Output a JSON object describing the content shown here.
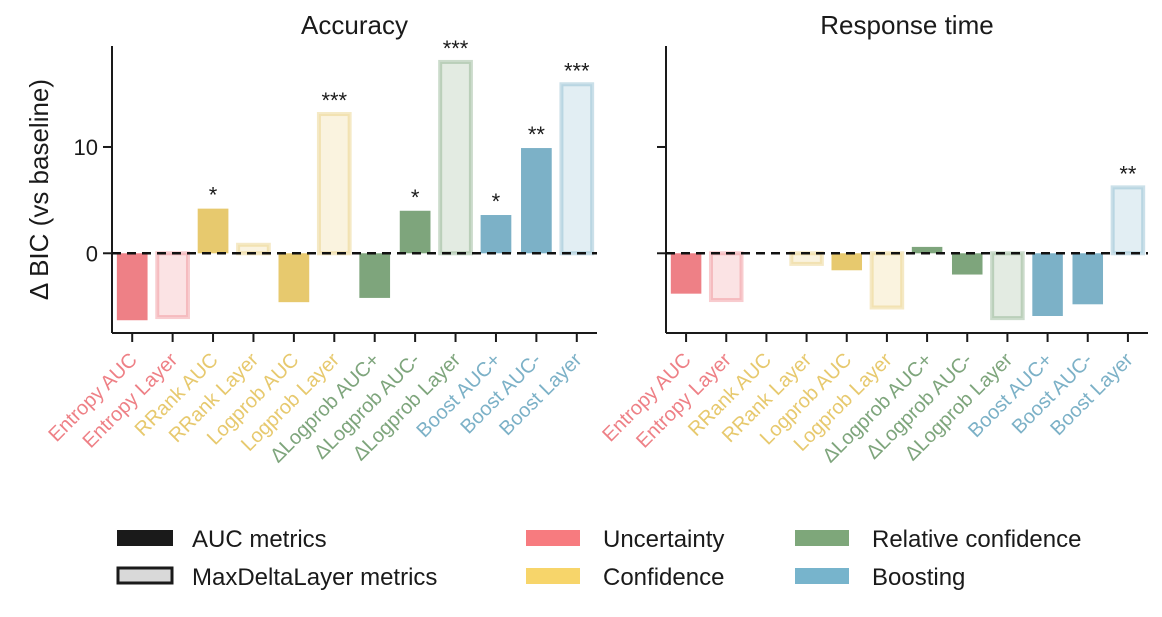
{
  "chart_data": {
    "type": "bar",
    "ylabel": "Δ BIC (vs baseline)",
    "ylim": [
      -7.5,
      19.5
    ],
    "yticks": [
      0,
      10
    ],
    "baseline": 0,
    "categories": [
      "Entropy AUC",
      "Entropy Layer",
      "RRank AUC",
      "RRank Layer",
      "Logprob AUC",
      "Logprob Layer",
      "ΔLogprob AUC+",
      "ΔLogprob AUC-",
      "ΔLogprob Layer",
      "Boost AUC+",
      "Boost AUC-",
      "Boost Layer"
    ],
    "category_group": [
      "Uncertainty",
      "Uncertainty",
      "Confidence",
      "Confidence",
      "Confidence",
      "Confidence",
      "Relative confidence",
      "Relative confidence",
      "Relative confidence",
      "Boosting",
      "Boosting",
      "Boosting"
    ],
    "metric_type": [
      "AUC",
      "Layer",
      "AUC",
      "Layer",
      "AUC",
      "Layer",
      "AUC",
      "AUC",
      "Layer",
      "AUC",
      "AUC",
      "Layer"
    ],
    "colors": {
      "Uncertainty": "#ee8086",
      "Confidence": "#e7c96e",
      "Relative confidence": "#7ea57c",
      "Boosting": "#7cb1c7"
    },
    "panels": [
      {
        "title": "Accuracy",
        "values": [
          -6.3,
          -6.0,
          4.2,
          0.8,
          -4.6,
          13.1,
          -4.2,
          4.0,
          18.0,
          3.6,
          9.9,
          15.9
        ],
        "significance": [
          "",
          "",
          "*",
          "",
          "",
          "***",
          "",
          "*",
          "***",
          "*",
          "**",
          "***"
        ]
      },
      {
        "title": "Response time",
        "values": [
          -3.8,
          -4.4,
          0.0,
          -1.0,
          -1.6,
          -5.1,
          0.6,
          -2.0,
          -6.1,
          -5.9,
          -4.8,
          6.2
        ],
        "significance": [
          "",
          "",
          "",
          "",
          "",
          "",
          "",
          "",
          "",
          "",
          "",
          "**"
        ]
      }
    ],
    "legend": {
      "position": "bottom",
      "entries": [
        {
          "label": "AUC metrics",
          "swatch": "solid",
          "color": "#1a1a1a"
        },
        {
          "label": "MaxDeltaLayer metrics",
          "swatch": "outline",
          "color": "#1a1a1a"
        },
        {
          "label": "Uncertainty",
          "swatch": "solid",
          "color": "#f77b7f"
        },
        {
          "label": "Confidence",
          "swatch": "solid",
          "color": "#f7d56a"
        },
        {
          "label": "Relative confidence",
          "swatch": "solid",
          "color": "#7ea77a"
        },
        {
          "label": "Boosting",
          "swatch": "solid",
          "color": "#77b4cc"
        }
      ]
    }
  }
}
